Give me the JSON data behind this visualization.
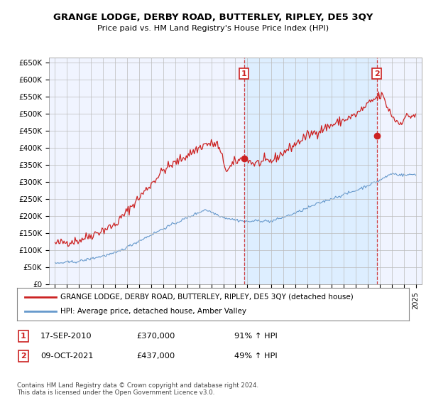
{
  "title": "GRANGE LODGE, DERBY ROAD, BUTTERLEY, RIPLEY, DE5 3QY",
  "subtitle": "Price paid vs. HM Land Registry's House Price Index (HPI)",
  "ylabel_ticks": [
    "£0",
    "£50K",
    "£100K",
    "£150K",
    "£200K",
    "£250K",
    "£300K",
    "£350K",
    "£400K",
    "£450K",
    "£500K",
    "£550K",
    "£600K",
    "£650K"
  ],
  "ytick_values": [
    0,
    50000,
    100000,
    150000,
    200000,
    250000,
    300000,
    350000,
    400000,
    450000,
    500000,
    550000,
    600000,
    650000
  ],
  "ylim": [
    0,
    665000
  ],
  "xlim_start": 1994.5,
  "xlim_end": 2025.5,
  "sale1_x": 2010.72,
  "sale1_y": 370000,
  "sale1_label": "1",
  "sale2_x": 2021.77,
  "sale2_y": 437000,
  "sale2_label": "2",
  "vline1_x": 2010.72,
  "vline2_x": 2021.77,
  "red_color": "#cc2222",
  "blue_color": "#6699cc",
  "shade_color": "#ddeeff",
  "vline_color": "#cc2222",
  "background_color": "#ffffff",
  "plot_bg_color": "#f0f4ff",
  "grid_color": "#bbbbbb",
  "legend_entries": [
    "GRANGE LODGE, DERBY ROAD, BUTTERLEY, RIPLEY, DE5 3QY (detached house)",
    "HPI: Average price, detached house, Amber Valley"
  ],
  "annotation1_date": "17-SEP-2010",
  "annotation1_price": "£370,000",
  "annotation1_hpi": "91% ↑ HPI",
  "annotation2_date": "09-OCT-2021",
  "annotation2_price": "£437,000",
  "annotation2_hpi": "49% ↑ HPI",
  "footer": "Contains HM Land Registry data © Crown copyright and database right 2024.\nThis data is licensed under the Open Government Licence v3.0."
}
